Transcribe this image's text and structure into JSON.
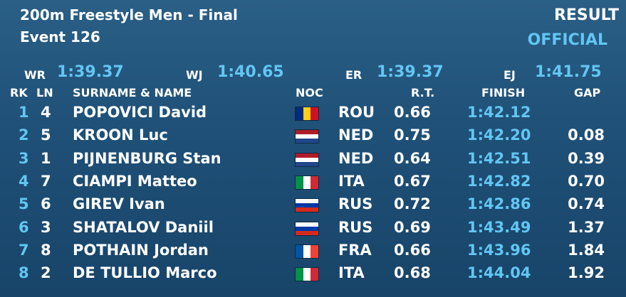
{
  "header": {
    "title": "200m Freestyle Men - Final",
    "event": "Event 126",
    "result": "RESULT",
    "status": "OFFICIAL"
  },
  "records": [
    {
      "label": "WR",
      "value": "1:39.37"
    },
    {
      "label": "WJ",
      "value": "1:40.65"
    },
    {
      "label": "ER",
      "value": "1:39.37"
    },
    {
      "label": "EJ",
      "value": "1:41.75"
    }
  ],
  "columns": {
    "rk": "RK",
    "ln": "LN",
    "name": "SURNAME & NAME",
    "noc": "NOC",
    "rt": "R.T.",
    "finish": "FINISH",
    "gap": "GAP"
  },
  "rows": [
    {
      "rk": "1",
      "ln": "4",
      "name": "POPOVICI David",
      "noc": "ROU",
      "rt": "0.66",
      "finish": "1:42.12",
      "gap": ""
    },
    {
      "rk": "2",
      "ln": "5",
      "name": "KROON Luc",
      "noc": "NED",
      "rt": "0.75",
      "finish": "1:42.20",
      "gap": "0.08"
    },
    {
      "rk": "3",
      "ln": "1",
      "name": "PIJNENBURG Stan",
      "noc": "NED",
      "rt": "0.64",
      "finish": "1:42.51",
      "gap": "0.39"
    },
    {
      "rk": "4",
      "ln": "7",
      "name": "CIAMPI Matteo",
      "noc": "ITA",
      "rt": "0.67",
      "finish": "1:42.82",
      "gap": "0.70"
    },
    {
      "rk": "5",
      "ln": "6",
      "name": "GIREV Ivan",
      "noc": "RUS",
      "rt": "0.72",
      "finish": "1:42.86",
      "gap": "0.74"
    },
    {
      "rk": "6",
      "ln": "3",
      "name": "SHATALOV Daniil",
      "noc": "RUS",
      "rt": "0.69",
      "finish": "1:43.49",
      "gap": "1.37"
    },
    {
      "rk": "7",
      "ln": "8",
      "name": "POTHAIN Jordan",
      "noc": "FRA",
      "rt": "0.66",
      "finish": "1:43.96",
      "gap": "1.84"
    },
    {
      "rk": "8",
      "ln": "2",
      "name": "DE TULLIO Marco",
      "noc": "ITA",
      "rt": "0.68",
      "finish": "1:44.04",
      "gap": "1.92"
    }
  ],
  "flags": {
    "ROU": {
      "dir": "v",
      "colors": [
        "#002b7f",
        "#fcd116",
        "#ce1126"
      ]
    },
    "NED": {
      "dir": "h",
      "colors": [
        "#ae1c28",
        "#ffffff",
        "#21468b"
      ]
    },
    "ITA": {
      "dir": "v",
      "colors": [
        "#009246",
        "#ffffff",
        "#ce2b37"
      ]
    },
    "RUS": {
      "dir": "h",
      "colors": [
        "#ffffff",
        "#0039a6",
        "#d52b1e"
      ]
    },
    "FRA": {
      "dir": "v",
      "colors": [
        "#0055a4",
        "#ffffff",
        "#ef4135"
      ]
    }
  },
  "colors": {
    "accent": "#62c6f3",
    "text": "#ffffff",
    "background": "#1f5077"
  }
}
